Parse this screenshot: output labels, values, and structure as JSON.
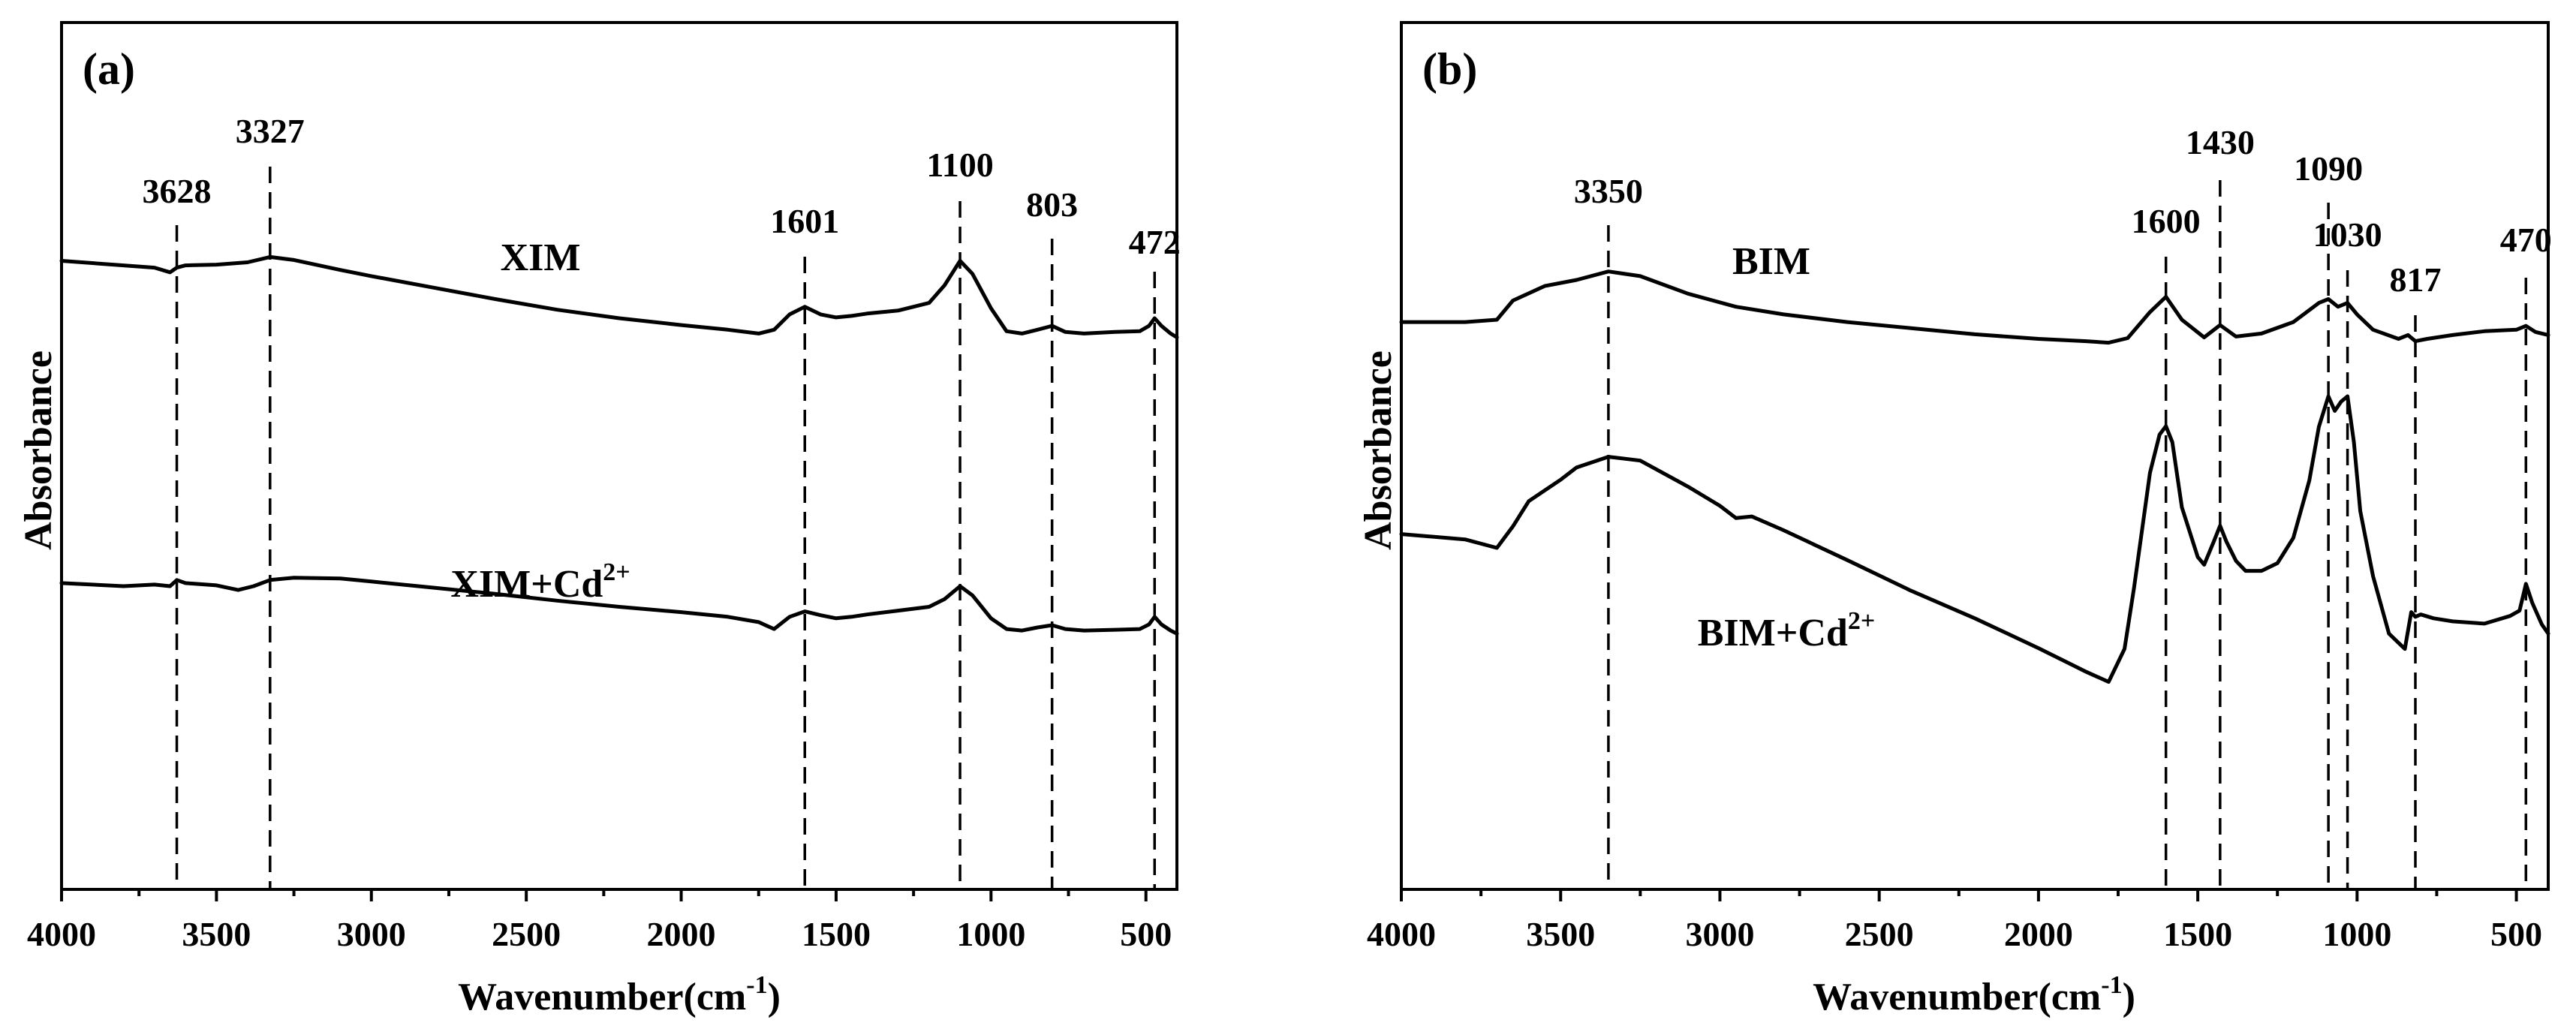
{
  "chart_data": [
    {
      "type": "line",
      "panel_label": "(a)",
      "xlabel": "Wavenumber(cm",
      "xlabel_sup": "-1",
      "xlabel_end": ")",
      "ylabel": "Absorbance",
      "xlim": [
        4000,
        400
      ],
      "x_reversed": true,
      "ylim": [
        0,
        1
      ],
      "y_ticks_shown": false,
      "x_ticks": [
        4000,
        3500,
        3000,
        2500,
        2000,
        1500,
        1000,
        500
      ],
      "x_tick_labels": [
        "4000",
        "3500",
        "3000",
        "2500",
        "2000",
        "1500",
        "1000",
        "500"
      ],
      "peak_markers": [
        {
          "x": 3628,
          "label": "3628"
        },
        {
          "x": 3327,
          "label": "3327"
        },
        {
          "x": 1601,
          "label": "1601"
        },
        {
          "x": 1100,
          "label": "1100"
        },
        {
          "x": 803,
          "label": "803"
        },
        {
          "x": 472,
          "label": "472"
        }
      ],
      "series": [
        {
          "name": "XIM",
          "name_sup": "",
          "x": [
            4000,
            3800,
            3700,
            3650,
            3628,
            3600,
            3500,
            3400,
            3327,
            3250,
            3100,
            3000,
            2800,
            2600,
            2400,
            2200,
            2000,
            1850,
            1750,
            1700,
            1650,
            1601,
            1550,
            1500,
            1450,
            1400,
            1300,
            1200,
            1150,
            1100,
            1060,
            1000,
            950,
            900,
            850,
            803,
            760,
            700,
            600,
            520,
            490,
            472,
            450,
            420,
            400
          ],
          "y": [
            0.777,
            0.771,
            0.768,
            0.762,
            0.768,
            0.771,
            0.772,
            0.775,
            0.782,
            0.778,
            0.765,
            0.757,
            0.742,
            0.727,
            0.713,
            0.702,
            0.693,
            0.687,
            0.682,
            0.687,
            0.707,
            0.717,
            0.707,
            0.703,
            0.705,
            0.708,
            0.712,
            0.722,
            0.745,
            0.777,
            0.76,
            0.715,
            0.685,
            0.682,
            0.687,
            0.692,
            0.684,
            0.682,
            0.684,
            0.685,
            0.692,
            0.702,
            0.692,
            0.682,
            0.677
          ]
        },
        {
          "name": "XIM+Cd",
          "name_sup": "2+",
          "x": [
            4000,
            3800,
            3700,
            3650,
            3628,
            3600,
            3500,
            3430,
            3380,
            3327,
            3250,
            3100,
            3000,
            2800,
            2600,
            2400,
            2200,
            2000,
            1850,
            1750,
            1700,
            1650,
            1601,
            1550,
            1500,
            1450,
            1400,
            1300,
            1200,
            1150,
            1100,
            1060,
            1000,
            950,
            900,
            850,
            803,
            760,
            700,
            600,
            520,
            490,
            472,
            450,
            420,
            400
          ],
          "y": [
            0.356,
            0.352,
            0.354,
            0.352,
            0.36,
            0.356,
            0.353,
            0.347,
            0.352,
            0.36,
            0.363,
            0.362,
            0.358,
            0.35,
            0.342,
            0.333,
            0.325,
            0.318,
            0.312,
            0.305,
            0.296,
            0.312,
            0.319,
            0.314,
            0.31,
            0.312,
            0.315,
            0.32,
            0.325,
            0.335,
            0.352,
            0.34,
            0.31,
            0.296,
            0.294,
            0.298,
            0.301,
            0.296,
            0.294,
            0.295,
            0.296,
            0.302,
            0.312,
            0.302,
            0.294,
            0.29
          ]
        }
      ]
    },
    {
      "type": "line",
      "panel_label": "(b)",
      "xlabel": "Wavenumber(cm",
      "xlabel_sup": "-1",
      "xlabel_end": ")",
      "ylabel": "Absorbance",
      "xlim": [
        4000,
        400
      ],
      "x_reversed": true,
      "ylim": [
        0,
        1
      ],
      "y_ticks_shown": false,
      "x_ticks": [
        4000,
        3500,
        3000,
        2500,
        2000,
        1500,
        1000,
        500
      ],
      "x_tick_labels": [
        "4000",
        "3500",
        "3000",
        "2500",
        "2000",
        "1500",
        "1000",
        "500"
      ],
      "peak_markers": [
        {
          "x": 3350,
          "label": "3350"
        },
        {
          "x": 1600,
          "label": "1600"
        },
        {
          "x": 1430,
          "label": "1430"
        },
        {
          "x": 1090,
          "label": "1090"
        },
        {
          "x": 1030,
          "label": "1030"
        },
        {
          "x": 817,
          "label": "817"
        },
        {
          "x": 470,
          "label": "470"
        }
      ],
      "series": [
        {
          "name": "BIM",
          "name_sup": "",
          "x": [
            4000,
            3800,
            3700,
            3650,
            3550,
            3450,
            3350,
            3250,
            3100,
            2950,
            2800,
            2600,
            2400,
            2200,
            2000,
            1850,
            1780,
            1720,
            1650,
            1600,
            1550,
            1480,
            1430,
            1380,
            1300,
            1200,
            1120,
            1090,
            1060,
            1030,
            1000,
            950,
            870,
            840,
            817,
            780,
            700,
            600,
            500,
            470,
            440,
            400
          ],
          "y": [
            0.697,
            0.697,
            0.7,
            0.725,
            0.744,
            0.752,
            0.763,
            0.757,
            0.734,
            0.717,
            0.707,
            0.697,
            0.689,
            0.681,
            0.675,
            0.672,
            0.67,
            0.676,
            0.71,
            0.73,
            0.7,
            0.677,
            0.693,
            0.678,
            0.682,
            0.697,
            0.722,
            0.727,
            0.717,
            0.722,
            0.707,
            0.687,
            0.675,
            0.68,
            0.672,
            0.675,
            0.68,
            0.685,
            0.687,
            0.692,
            0.684,
            0.68
          ]
        },
        {
          "name": "BIM+Cd",
          "name_sup": "2+",
          "x": [
            4000,
            3800,
            3700,
            3650,
            3600,
            3500,
            3450,
            3350,
            3250,
            3100,
            3000,
            2950,
            2900,
            2800,
            2600,
            2400,
            2200,
            2000,
            1850,
            1780,
            1730,
            1700,
            1650,
            1620,
            1600,
            1580,
            1550,
            1500,
            1480,
            1450,
            1430,
            1410,
            1380,
            1350,
            1300,
            1250,
            1200,
            1150,
            1120,
            1090,
            1070,
            1050,
            1030,
            1010,
            990,
            950,
            900,
            870,
            850,
            830,
            817,
            800,
            760,
            700,
            600,
            520,
            490,
            470,
            450,
            420,
            400
          ],
          "y": [
            0.42,
            0.413,
            0.402,
            0.43,
            0.463,
            0.491,
            0.507,
            0.521,
            0.516,
            0.482,
            0.457,
            0.441,
            0.443,
            0.425,
            0.386,
            0.346,
            0.31,
            0.271,
            0.24,
            0.227,
            0.27,
            0.35,
            0.5,
            0.55,
            0.561,
            0.54,
            0.455,
            0.39,
            0.38,
            0.41,
            0.431,
            0.41,
            0.385,
            0.372,
            0.372,
            0.382,
            0.415,
            0.49,
            0.56,
            0.6,
            0.581,
            0.593,
            0.6,
            0.54,
            0.45,
            0.365,
            0.29,
            0.278,
            0.27,
            0.318,
            0.312,
            0.315,
            0.31,
            0.306,
            0.303,
            0.313,
            0.32,
            0.355,
            0.33,
            0.302,
            0.29
          ]
        }
      ]
    }
  ]
}
